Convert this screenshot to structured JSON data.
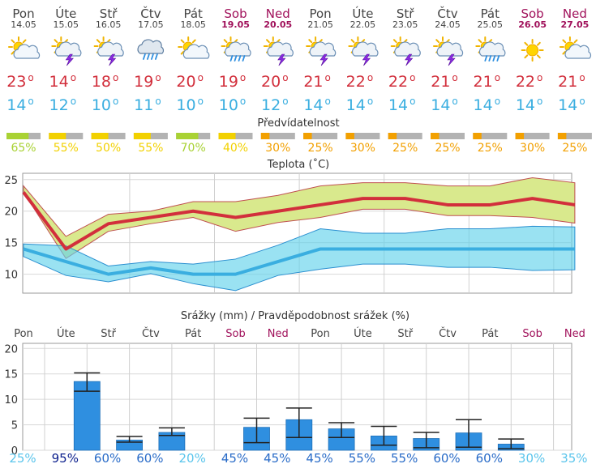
{
  "days": [
    {
      "name": "Pon",
      "date": "14.05",
      "weekend": false,
      "icon": "partly-cloudy-icon",
      "tmax": "23",
      "tmin": "14",
      "pred": "65%",
      "pred_level": 3
    },
    {
      "name": "Úte",
      "date": "15.05",
      "weekend": false,
      "icon": "thunderstorm-icon",
      "tmax": "14",
      "tmin": "12",
      "pred": "55%",
      "pred_level": 2
    },
    {
      "name": "Stř",
      "date": "16.05",
      "weekend": false,
      "icon": "thunderstorm-icon",
      "tmax": "18",
      "tmin": "10",
      "pred": "50%",
      "pred_level": 2
    },
    {
      "name": "Čtv",
      "date": "17.05",
      "weekend": false,
      "icon": "rain-cloud-icon",
      "tmax": "19",
      "tmin": "11",
      "pred": "55%",
      "pred_level": 2
    },
    {
      "name": "Pát",
      "date": "18.05",
      "weekend": false,
      "icon": "partly-cloudy-icon",
      "tmax": "20",
      "tmin": "10",
      "pred": "70%",
      "pred_level": 3
    },
    {
      "name": "Sob",
      "date": "19.05",
      "weekend": true,
      "icon": "rain-showers-icon",
      "tmax": "19",
      "tmin": "10",
      "pred": "40%",
      "pred_level": 2
    },
    {
      "name": "Ned",
      "date": "20.05",
      "weekend": true,
      "icon": "thunderstorm-icon",
      "tmax": "20",
      "tmin": "12",
      "pred": "30%",
      "pred_level": 1
    },
    {
      "name": "Pon",
      "date": "21.05",
      "weekend": false,
      "icon": "thunderstorm-icon",
      "tmax": "21",
      "tmin": "14",
      "pred": "25%",
      "pred_level": 1
    },
    {
      "name": "Úte",
      "date": "22.05",
      "weekend": false,
      "icon": "thunderstorm-icon",
      "tmax": "22",
      "tmin": "14",
      "pred": "30%",
      "pred_level": 1
    },
    {
      "name": "Stř",
      "date": "23.05",
      "weekend": false,
      "icon": "thunderstorm-icon",
      "tmax": "22",
      "tmin": "14",
      "pred": "25%",
      "pred_level": 1
    },
    {
      "name": "Čtv",
      "date": "24.05",
      "weekend": false,
      "icon": "thunderstorm-icon",
      "tmax": "21",
      "tmin": "14",
      "pred": "25%",
      "pred_level": 1
    },
    {
      "name": "Pát",
      "date": "25.05",
      "weekend": false,
      "icon": "rain-showers-icon",
      "tmax": "21",
      "tmin": "14",
      "pred": "25%",
      "pred_level": 1
    },
    {
      "name": "Sob",
      "date": "26.05",
      "weekend": true,
      "icon": "sun-icon",
      "tmax": "22",
      "tmin": "14",
      "pred": "30%",
      "pred_level": 1
    },
    {
      "name": "Ned",
      "date": "27.05",
      "weekend": true,
      "icon": "partly-cloudy-icon",
      "tmax": "21",
      "tmin": "14",
      "pred": "25%",
      "pred_level": 1
    }
  ],
  "degree_symbol": "o",
  "predictability_title": "Předvídatelnost",
  "colors": {
    "weekday": "#444444",
    "weekend": "#a0105a",
    "tmax": "#d22f3c",
    "tmin": "#3aaee0",
    "pred_high": "#a9d234",
    "pred_mid": "#f2d100",
    "pred_low": "#f2a000",
    "pred_gray": "#b3b3b3",
    "bar": "#2f8fe0",
    "prob_low": "#5bc5ec",
    "prob_high": "#0a1e8c"
  },
  "chart_data": [
    {
      "type": "line",
      "title": "Teplota (˚C)",
      "ylim": [
        7,
        26
      ],
      "yticks": [
        "10",
        "15",
        "20",
        "25"
      ],
      "yticks_values": [
        10,
        15,
        20,
        25
      ],
      "grid": true,
      "x": [
        0,
        1,
        2,
        3,
        4,
        5,
        6,
        7,
        8,
        9,
        10,
        11,
        12,
        13
      ],
      "series": [
        {
          "role": "max",
          "values": [
            23,
            14,
            18,
            19,
            20,
            19,
            20,
            21,
            22,
            22,
            21,
            21,
            22,
            21
          ]
        },
        {
          "role": "min",
          "values": [
            14,
            12,
            10,
            11,
            10,
            10,
            12,
            14,
            14,
            14,
            14,
            14,
            14,
            14
          ]
        }
      ],
      "bands": {
        "max_upper": [
          24,
          16,
          19.5,
          20,
          21.5,
          21.5,
          22.5,
          24,
          24.5,
          24.5,
          24,
          24,
          25.3,
          24.5
        ],
        "max_lower": [
          23,
          12.5,
          16.8,
          18,
          19,
          16.8,
          18.2,
          19,
          20.3,
          20.3,
          19.3,
          19.3,
          19,
          18.1
        ],
        "min_upper": [
          14.8,
          14.5,
          11.3,
          12,
          11.6,
          12.4,
          14.6,
          17.2,
          16.5,
          16.5,
          17.2,
          17.2,
          17.6,
          17.5
        ],
        "min_lower": [
          12.8,
          9.8,
          8.8,
          10.1,
          8.5,
          7.4,
          9.8,
          10.8,
          11.6,
          11.6,
          11.1,
          11.1,
          10.6,
          10.7
        ]
      }
    },
    {
      "type": "bar",
      "title": "Srážky (mm) / Pravděpodobnost srážek (%)",
      "ylim": [
        0,
        21
      ],
      "yticks": [
        "0",
        "5",
        "10",
        "15",
        "20"
      ],
      "yticks_values": [
        0,
        5,
        10,
        15,
        20
      ],
      "grid": true,
      "values": [
        0,
        13.5,
        2,
        3.5,
        0,
        4.5,
        6,
        4.2,
        2.8,
        2.3,
        3.4,
        1.2,
        0,
        0
      ],
      "err_low": [
        null,
        11.6,
        1.6,
        2.9,
        null,
        1.5,
        2.5,
        2.5,
        1.0,
        0.5,
        0.6,
        0.3,
        null,
        null
      ],
      "err_high": [
        null,
        15.2,
        2.7,
        4.4,
        null,
        6.3,
        8.3,
        5.4,
        4.7,
        3.5,
        6.0,
        2.2,
        null,
        null
      ],
      "probability": [
        "25%",
        "95%",
        "60%",
        "60%",
        "20%",
        "45%",
        "45%",
        "45%",
        "55%",
        "55%",
        "60%",
        "60%",
        "30%",
        "35%"
      ],
      "probability_values": [
        25,
        95,
        60,
        60,
        20,
        45,
        45,
        45,
        55,
        55,
        60,
        60,
        30,
        35
      ]
    }
  ]
}
